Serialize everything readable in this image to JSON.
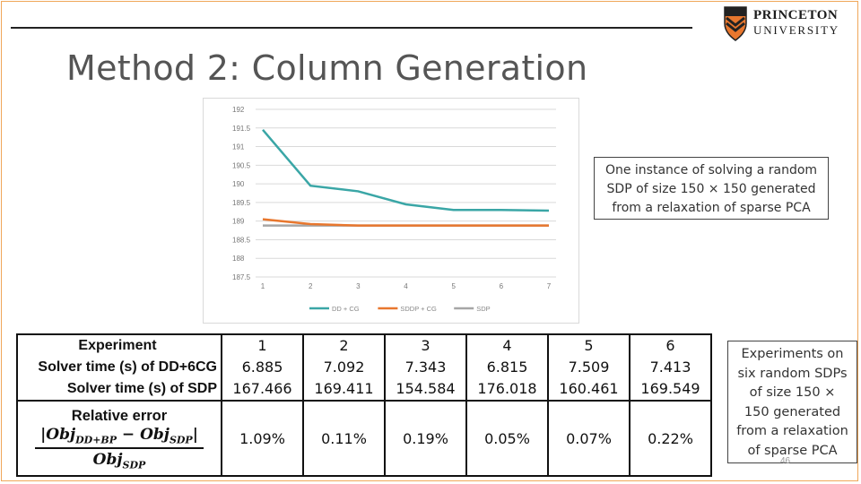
{
  "slide": {
    "title": "Method 2: Column Generation",
    "page_number": "46",
    "logo": {
      "line1": "PRINCETON",
      "line2": "UNIVERSITY"
    },
    "note_top": [
      "One instance of solving a random",
      "SDP of size 150 × 150 generated",
      "from a relaxation of sparse PCA"
    ],
    "note_bottom": [
      "Experiments on",
      "six random SDPs",
      "of size 150 ×",
      "150 generated",
      "from a relaxation",
      "of sparse PCA"
    ],
    "colors": {
      "accent_orange": "#e8772e",
      "teal": "#3aa6a6",
      "gray": "#a6a6a6",
      "frame": "#f0a75a"
    }
  },
  "table": {
    "row_labels": [
      "Experiment",
      "Solver time (s) of DD+6CG",
      "Solver time (s) of SDP"
    ],
    "error_label": "Relative error",
    "formula": {
      "num_left": "|Obj",
      "num_sub1": "DD+BP",
      "num_mid": " − Obj",
      "num_sub2": "SDP",
      "num_right": "|",
      "den": "Obj",
      "den_sub": "SDP"
    },
    "experiments": [
      "1",
      "2",
      "3",
      "4",
      "5",
      "6"
    ],
    "dd_times": [
      "6.885",
      "7.092",
      "7.343",
      "6.815",
      "7.509",
      "7.413"
    ],
    "sdp_times": [
      "167.466",
      "169.411",
      "154.584",
      "176.018",
      "160.461",
      "169.549"
    ],
    "relative_errors": [
      "1.09%",
      "0.11%",
      "0.19%",
      "0.05%",
      "0.07%",
      "0.22%"
    ]
  },
  "chart_data": {
    "type": "line",
    "x": [
      1,
      2,
      3,
      4,
      5,
      6,
      7
    ],
    "ylim": [
      187.5,
      192
    ],
    "yticks": [
      "192",
      "191.5",
      "191",
      "190.5",
      "190",
      "189.5",
      "189",
      "188.5",
      "188",
      "187.5"
    ],
    "series": [
      {
        "name": "DD + CG",
        "color": "#3aa6a6",
        "values": [
          191.45,
          189.95,
          189.8,
          189.45,
          189.3,
          189.3,
          189.28
        ]
      },
      {
        "name": "SDDP + CG",
        "color": "#e8772e",
        "values": [
          189.05,
          188.92,
          188.88,
          188.88,
          188.88,
          188.88,
          188.88
        ]
      },
      {
        "name": "SDP",
        "color": "#a6a6a6",
        "values": [
          188.88,
          188.88,
          188.88,
          188.88,
          188.88,
          188.88,
          188.88
        ]
      }
    ],
    "legend_position": "bottom",
    "grid": true
  }
}
